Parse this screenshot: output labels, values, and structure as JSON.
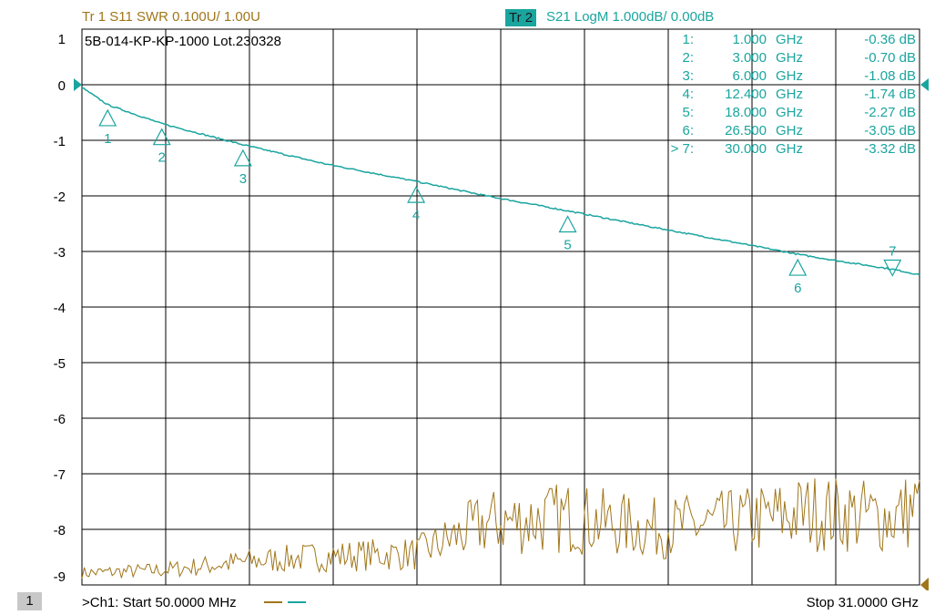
{
  "header": {
    "tr1": "Tr 1  S11 SWR 0.100U/  1.00U",
    "tr2_chip": "Tr 2",
    "tr2": "S21 LogM 1.000dB/  0.00dB"
  },
  "annotation": "5B-014-KP-KP-1000  Lot.230328",
  "footer": {
    "channel": "1",
    "start": ">Ch1:  Start   50.0000 MHz",
    "stop": "Stop  31.0000 GHz"
  },
  "colors": {
    "s21": "#1aa59f",
    "s11": "#a0761a",
    "grid": "#000000"
  },
  "chart_data": {
    "type": "line",
    "title": "",
    "xlabel": "",
    "ylabel": "",
    "x_range_ghz": [
      0.05,
      31.0
    ],
    "ylim": [
      -9,
      1
    ],
    "y_ticks": [
      "1",
      "0",
      "-1",
      "-2",
      "-3",
      "-4",
      "-5",
      "-6",
      "-7",
      "-8",
      "-9"
    ],
    "grid": true,
    "series": [
      {
        "trace": "S21",
        "x": [
          0.05,
          1.0,
          3.0,
          6.0,
          9.0,
          12.4,
          15.0,
          18.0,
          21.0,
          24.0,
          26.5,
          28.0,
          30.0,
          31.0
        ],
        "y": [
          -0.05,
          -0.36,
          -0.7,
          -1.08,
          -1.42,
          -1.74,
          -2.0,
          -2.27,
          -2.55,
          -2.82,
          -3.05,
          -3.17,
          -3.32,
          -3.42
        ]
      },
      {
        "trace": "S11 SWR",
        "x": [
          0.05,
          3.0,
          6.0,
          9.0,
          12.4,
          15.0,
          18.0,
          21.0,
          24.0,
          27.0,
          30.0,
          31.0
        ],
        "swr": [
          1.01,
          1.015,
          1.03,
          1.04,
          1.045,
          1.1,
          1.11,
          1.09,
          1.1,
          1.12,
          1.11,
          1.13
        ]
      }
    ],
    "markers": [
      {
        "id": "1",
        "row": "1:",
        "freq": "1.000",
        "unit": "GHz",
        "value": "-0.36 dB",
        "x": 1.0,
        "y": -0.36
      },
      {
        "id": "2",
        "row": "2:",
        "freq": "3.000",
        "unit": "GHz",
        "value": "-0.70 dB",
        "x": 3.0,
        "y": -0.7
      },
      {
        "id": "3",
        "row": "3:",
        "freq": "6.000",
        "unit": "GHz",
        "value": "-1.08 dB",
        "x": 6.0,
        "y": -1.08
      },
      {
        "id": "4",
        "row": "4:",
        "freq": "12.400",
        "unit": "GHz",
        "value": "-1.74 dB",
        "x": 12.4,
        "y": -1.74
      },
      {
        "id": "5",
        "row": "5:",
        "freq": "18.000",
        "unit": "GHz",
        "value": "-2.27 dB",
        "x": 18.0,
        "y": -2.27
      },
      {
        "id": "6",
        "row": "6:",
        "freq": "26.500",
        "unit": "GHz",
        "value": "-3.05 dB",
        "x": 26.5,
        "y": -3.05
      },
      {
        "id": "7",
        "row": "> 7:",
        "freq": "30.000",
        "unit": "GHz",
        "value": "-3.32 dB",
        "x": 30.0,
        "y": -3.32
      }
    ]
  }
}
